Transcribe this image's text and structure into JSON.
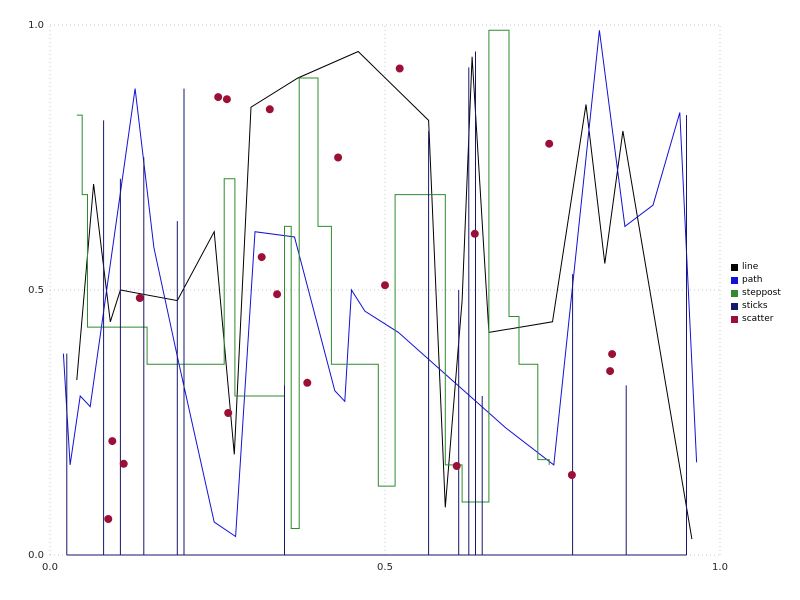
{
  "figure": {
    "background": "#ffffff"
  },
  "chart_data": {
    "type": "line",
    "title": "",
    "xlabel": "",
    "ylabel": "",
    "xlim": [
      0.0,
      1.0
    ],
    "ylim": [
      0.0,
      1.0
    ],
    "x_ticks": [
      "0.0",
      "0.5",
      "1.0"
    ],
    "y_ticks": [
      "0.0",
      "0.5",
      "1.0"
    ],
    "x_tick_values": [
      0.0,
      0.5,
      1.0
    ],
    "y_tick_values": [
      0.0,
      0.5,
      1.0
    ],
    "grid": "dotted",
    "grid_color": "#c9c9c9",
    "legend_position": "right",
    "series": [
      {
        "name": "line",
        "type": "line",
        "color": "#000000",
        "points": [
          [
            0.04,
            0.33
          ],
          [
            0.065,
            0.7
          ],
          [
            0.09,
            0.44
          ],
          [
            0.105,
            0.5
          ],
          [
            0.19,
            0.48
          ],
          [
            0.245,
            0.61
          ],
          [
            0.275,
            0.19
          ],
          [
            0.3,
            0.845
          ],
          [
            0.37,
            0.9
          ],
          [
            0.46,
            0.95
          ],
          [
            0.565,
            0.82
          ],
          [
            0.59,
            0.09
          ],
          [
            0.615,
            0.48
          ],
          [
            0.63,
            0.94
          ],
          [
            0.655,
            0.42
          ],
          [
            0.75,
            0.44
          ],
          [
            0.8,
            0.85
          ],
          [
            0.828,
            0.55
          ],
          [
            0.855,
            0.8
          ],
          [
            0.958,
            0.03
          ]
        ]
      },
      {
        "name": "path",
        "type": "line",
        "color": "#1212d6",
        "points": [
          [
            0.02,
            0.38
          ],
          [
            0.03,
            0.17
          ],
          [
            0.045,
            0.3
          ],
          [
            0.06,
            0.28
          ],
          [
            0.127,
            0.88
          ],
          [
            0.155,
            0.58
          ],
          [
            0.19,
            0.375
          ],
          [
            0.245,
            0.062
          ],
          [
            0.277,
            0.035
          ],
          [
            0.306,
            0.61
          ],
          [
            0.365,
            0.6
          ],
          [
            0.425,
            0.31
          ],
          [
            0.44,
            0.29
          ],
          [
            0.45,
            0.5
          ],
          [
            0.47,
            0.46
          ],
          [
            0.52,
            0.42
          ],
          [
            0.6,
            0.33
          ],
          [
            0.68,
            0.24
          ],
          [
            0.752,
            0.17
          ],
          [
            0.82,
            0.99
          ],
          [
            0.858,
            0.62
          ],
          [
            0.9,
            0.66
          ],
          [
            0.94,
            0.835
          ],
          [
            0.965,
            0.175
          ]
        ]
      },
      {
        "name": "steppost",
        "type": "step-post",
        "color": "#2e8b2e",
        "points": [
          [
            0.04,
            0.83
          ],
          [
            0.048,
            0.68
          ],
          [
            0.056,
            0.43
          ],
          [
            0.145,
            0.36
          ],
          [
            0.26,
            0.71
          ],
          [
            0.276,
            0.3
          ],
          [
            0.35,
            0.62
          ],
          [
            0.36,
            0.05
          ],
          [
            0.372,
            0.9
          ],
          [
            0.4,
            0.62
          ],
          [
            0.42,
            0.36
          ],
          [
            0.49,
            0.13
          ],
          [
            0.515,
            0.68
          ],
          [
            0.59,
            0.17
          ],
          [
            0.615,
            0.1
          ],
          [
            0.655,
            0.99
          ],
          [
            0.685,
            0.45
          ],
          [
            0.7,
            0.36
          ],
          [
            0.728,
            0.18
          ],
          [
            0.745,
            0.17
          ]
        ]
      },
      {
        "name": "sticks",
        "type": "sticks",
        "color": "#16166e",
        "baseline": 0.0,
        "points": [
          [
            0.025,
            0.38
          ],
          [
            0.08,
            0.82
          ],
          [
            0.105,
            0.71
          ],
          [
            0.14,
            0.75
          ],
          [
            0.19,
            0.63
          ],
          [
            0.2,
            0.88
          ],
          [
            0.35,
            0.32
          ],
          [
            0.565,
            0.8
          ],
          [
            0.61,
            0.5
          ],
          [
            0.625,
            0.92
          ],
          [
            0.635,
            0.95
          ],
          [
            0.645,
            0.3
          ],
          [
            0.78,
            0.53
          ],
          [
            0.86,
            0.32
          ],
          [
            0.95,
            0.83
          ]
        ]
      },
      {
        "name": "scatter",
        "type": "scatter",
        "color": "#9c1038",
        "marker_radius": 4,
        "points": [
          [
            0.087,
            0.068
          ],
          [
            0.093,
            0.215
          ],
          [
            0.11,
            0.172
          ],
          [
            0.134,
            0.485
          ],
          [
            0.251,
            0.864
          ],
          [
            0.264,
            0.86
          ],
          [
            0.266,
            0.268
          ],
          [
            0.328,
            0.841
          ],
          [
            0.316,
            0.562
          ],
          [
            0.339,
            0.492
          ],
          [
            0.384,
            0.325
          ],
          [
            0.43,
            0.75
          ],
          [
            0.5,
            0.509
          ],
          [
            0.522,
            0.918
          ],
          [
            0.607,
            0.168
          ],
          [
            0.634,
            0.606
          ],
          [
            0.745,
            0.776
          ],
          [
            0.779,
            0.151
          ],
          [
            0.836,
            0.347
          ],
          [
            0.839,
            0.379
          ]
        ]
      }
    ]
  },
  "legend": {
    "items": [
      {
        "label": "line",
        "color": "#000000"
      },
      {
        "label": "path",
        "color": "#1212d6"
      },
      {
        "label": "steppost",
        "color": "#2e8b2e"
      },
      {
        "label": "sticks",
        "color": "#16166e"
      },
      {
        "label": "scatter",
        "color": "#9c1038"
      }
    ]
  }
}
